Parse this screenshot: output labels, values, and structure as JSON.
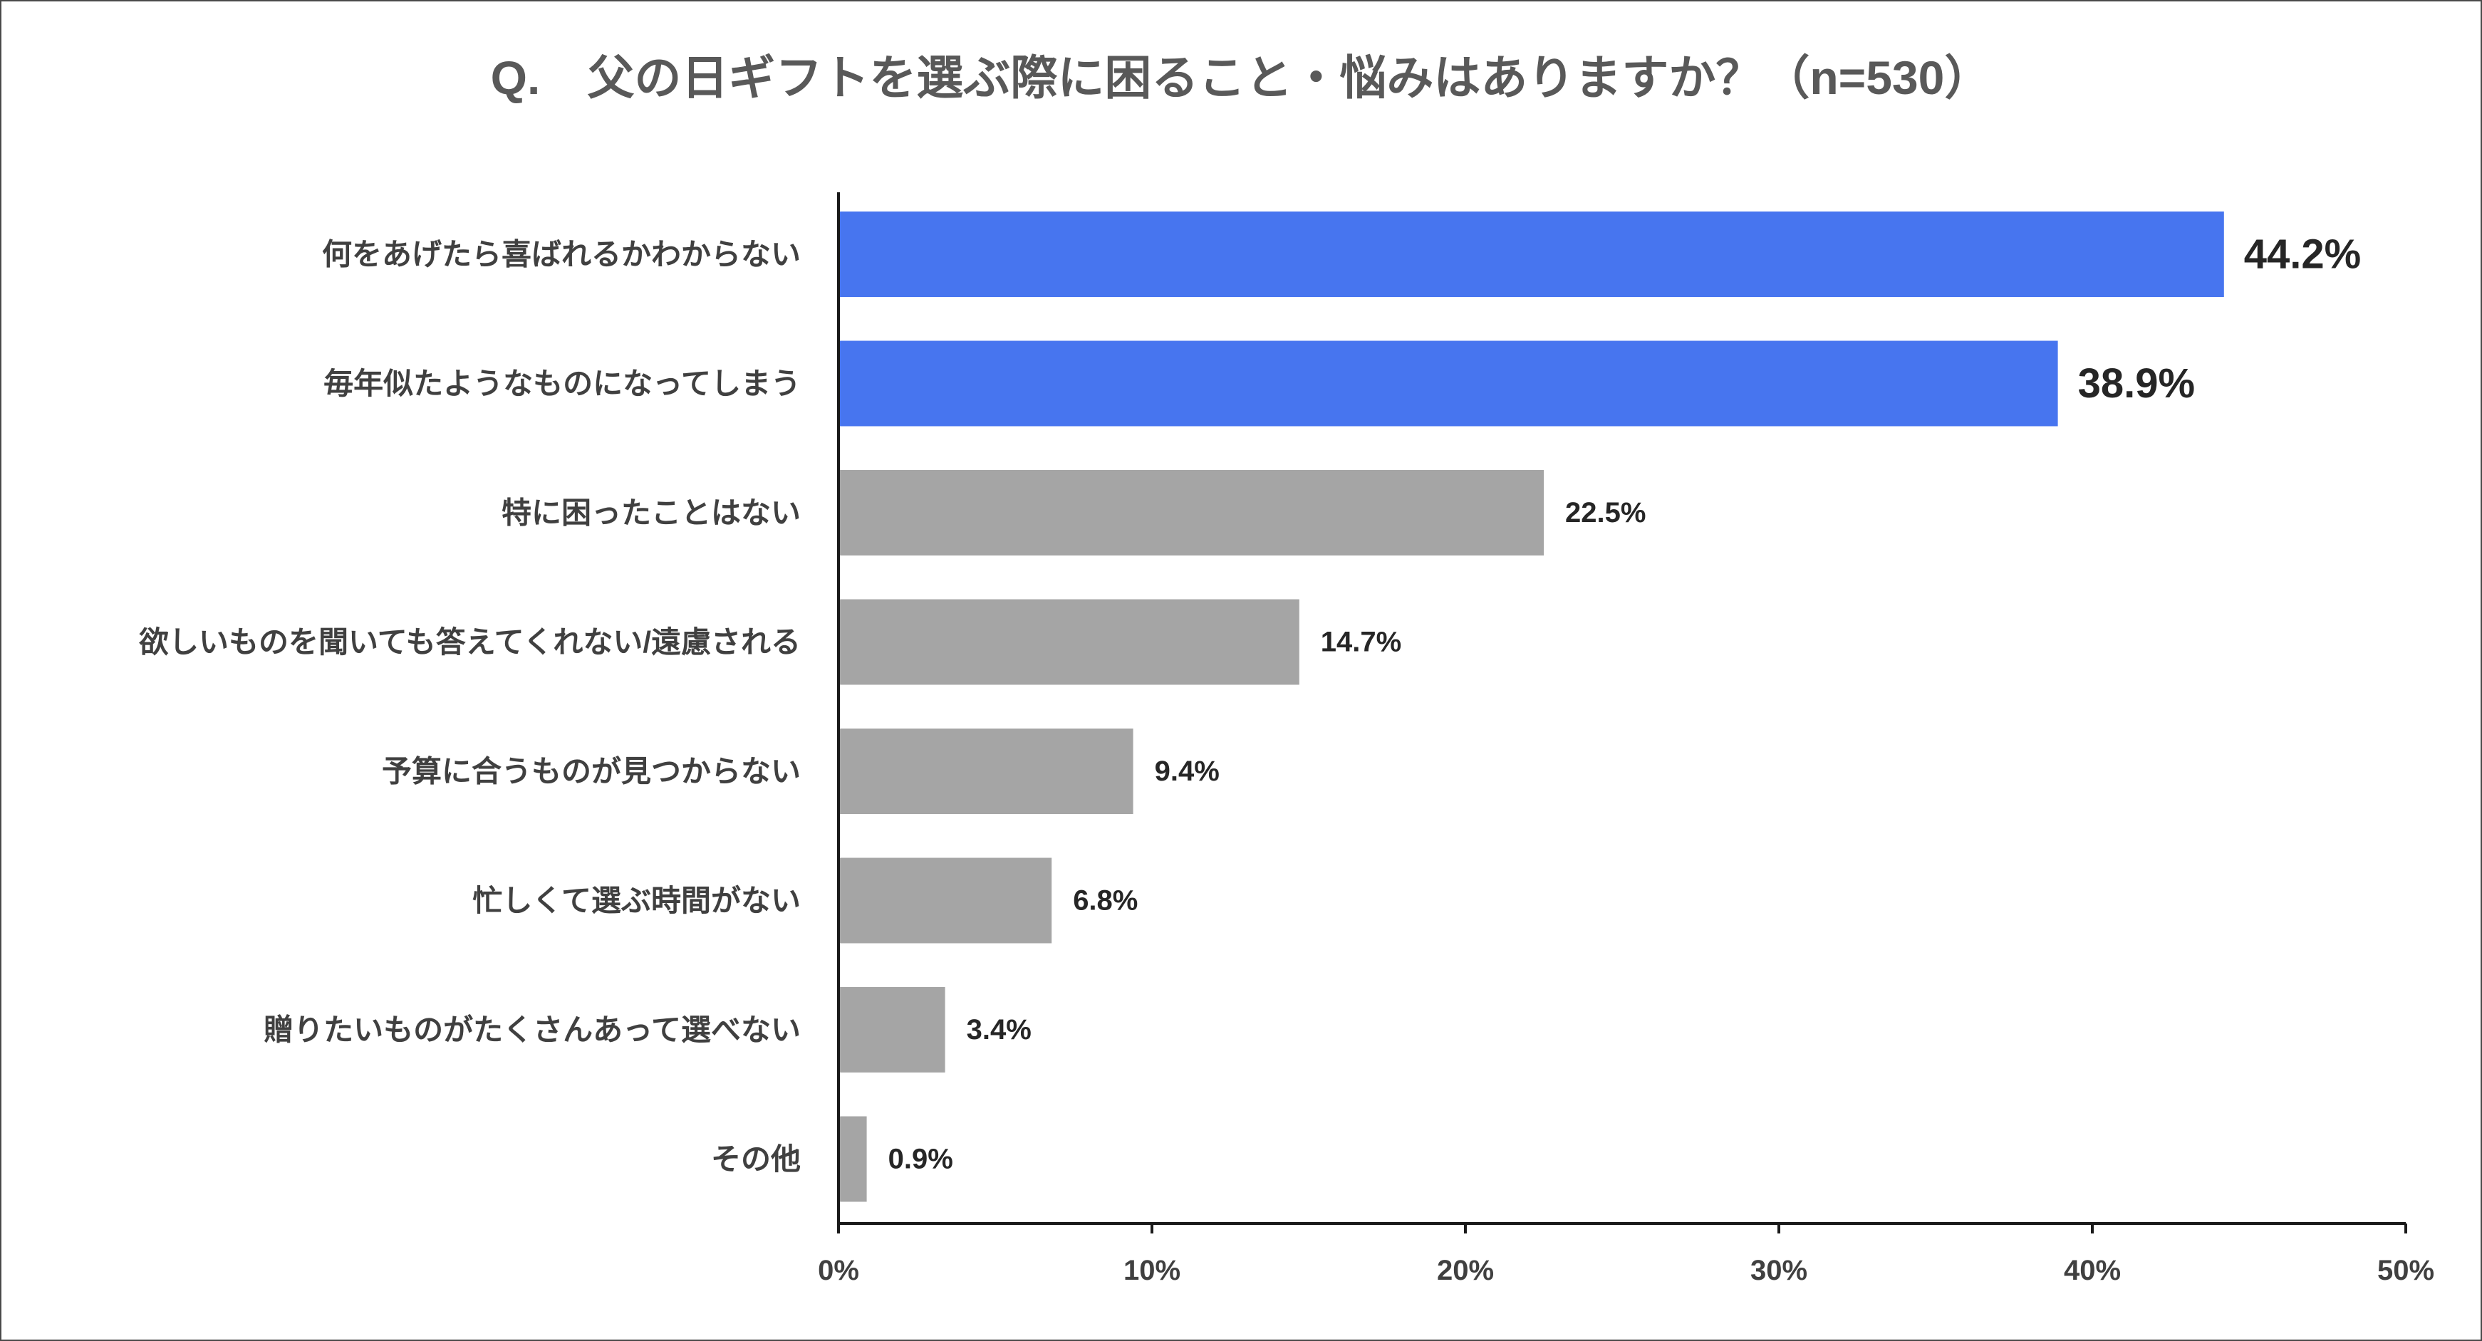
{
  "chart_data": {
    "type": "bar",
    "orientation": "horizontal",
    "title": "Q.　父の日ギフトを選ぶ際に困ること・悩みはありますか？（n=530）",
    "categories": [
      "何をあげたら喜ばれるかわからない",
      "毎年似たようなものになってしまう",
      "特に困ったことはない",
      "欲しいものを聞いても答えてくれない/遠慮される",
      "予算に合うものが見つからない",
      "忙しくて選ぶ時間がない",
      "贈りたいものがたくさんあって選べない",
      "その他"
    ],
    "values": [
      44.2,
      38.9,
      22.5,
      14.7,
      9.4,
      6.8,
      3.4,
      0.9
    ],
    "value_labels": [
      "44.2%",
      "38.9%",
      "22.5%",
      "14.7%",
      "9.4%",
      "6.8%",
      "3.4%",
      "0.9%"
    ],
    "highlighted": [
      true,
      true,
      false,
      false,
      false,
      false,
      false,
      false
    ],
    "xlim": [
      0,
      50
    ],
    "xticks": [
      0,
      10,
      20,
      30,
      40,
      50
    ],
    "xtick_labels": [
      "0%",
      "10%",
      "20%",
      "30%",
      "40%",
      "50%"
    ],
    "xlabel": "",
    "ylabel": "",
    "grid": false,
    "legend": "none",
    "colors": {
      "highlight": "#4775EF",
      "default": "#A5A5A5",
      "axis": "#1a1a1a",
      "title_text": "#595959",
      "label_text": "#404040",
      "value_text": "#262626"
    }
  }
}
